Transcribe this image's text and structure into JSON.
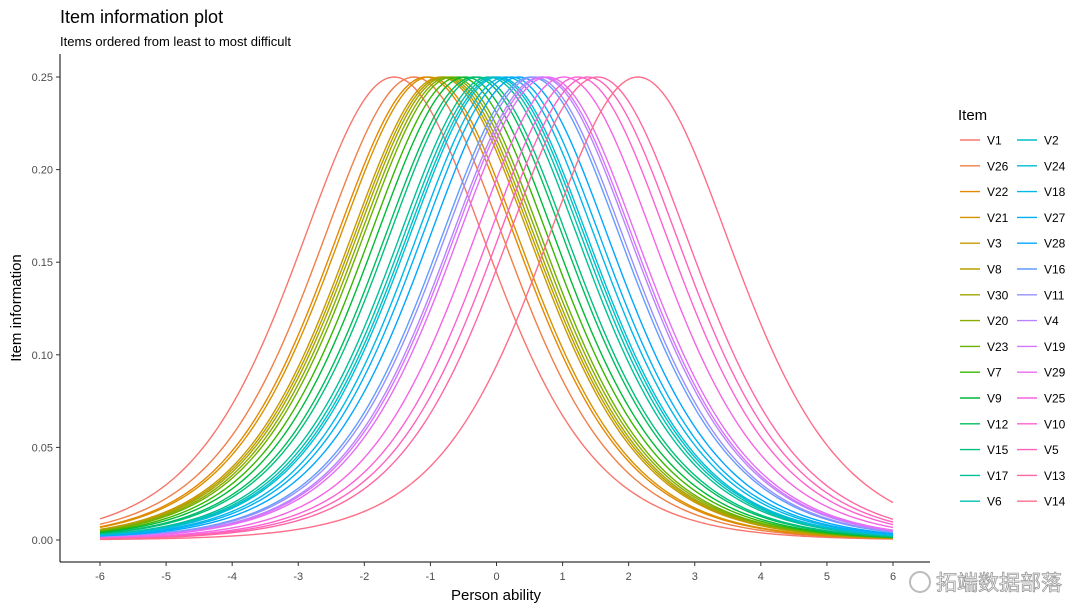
{
  "chart_data": {
    "type": "line",
    "title": "Item information plot",
    "subtitle": "Items ordered from least to most difficult",
    "xlabel": "Person ability",
    "ylabel": "Item information",
    "xlim": [
      -6,
      6
    ],
    "ylim": [
      0,
      0.25
    ],
    "x_ticks": [
      -6,
      -5,
      -4,
      -3,
      -2,
      -1,
      0,
      1,
      2,
      3,
      4,
      5,
      6
    ],
    "y_ticks": [
      0,
      0.05,
      0.1,
      0.15,
      0.2,
      0.25
    ],
    "y_tick_labels": [
      "0.00",
      "0.05",
      "0.10",
      "0.15",
      "0.20",
      "0.25"
    ],
    "grid": false,
    "curve_model": "Rasch item information P(1-P), peak 0.25 at item difficulty",
    "palette": "ggplot default hue (hcl, c=100, l=65)",
    "legend": {
      "title": "Item",
      "placement": "right",
      "columns": 2
    },
    "series": [
      {
        "name": "V1",
        "difficulty": -1.55
      },
      {
        "name": "V26",
        "difficulty": -1.25
      },
      {
        "name": "V22",
        "difficulty": -1.07
      },
      {
        "name": "V21",
        "difficulty": -1.02
      },
      {
        "name": "V3",
        "difficulty": -0.85
      },
      {
        "name": "V8",
        "difficulty": -0.81
      },
      {
        "name": "V30",
        "difficulty": -0.77
      },
      {
        "name": "V20",
        "difficulty": -0.72
      },
      {
        "name": "V23",
        "difficulty": -0.67
      },
      {
        "name": "V7",
        "difficulty": -0.57
      },
      {
        "name": "V9",
        "difficulty": -0.47
      },
      {
        "name": "V12",
        "difficulty": -0.34
      },
      {
        "name": "V15",
        "difficulty": -0.28
      },
      {
        "name": "V17",
        "difficulty": -0.12
      },
      {
        "name": "V6",
        "difficulty": -0.06
      },
      {
        "name": "V2",
        "difficulty": -0.01
      },
      {
        "name": "V24",
        "difficulty": 0.03
      },
      {
        "name": "V18",
        "difficulty": 0.14
      },
      {
        "name": "V27",
        "difficulty": 0.22
      },
      {
        "name": "V28",
        "difficulty": 0.34
      },
      {
        "name": "V16",
        "difficulty": 0.52
      },
      {
        "name": "V11",
        "difficulty": 0.57
      },
      {
        "name": "V4",
        "difficulty": 0.67
      },
      {
        "name": "V19",
        "difficulty": 0.71
      },
      {
        "name": "V29",
        "difficulty": 0.77
      },
      {
        "name": "V25",
        "difficulty": 1.02
      },
      {
        "name": "V10",
        "difficulty": 1.23
      },
      {
        "name": "V5",
        "difficulty": 1.38
      },
      {
        "name": "V13",
        "difficulty": 1.53
      },
      {
        "name": "V14",
        "difficulty": 2.14
      }
    ]
  },
  "watermark": "拓端数据部落"
}
